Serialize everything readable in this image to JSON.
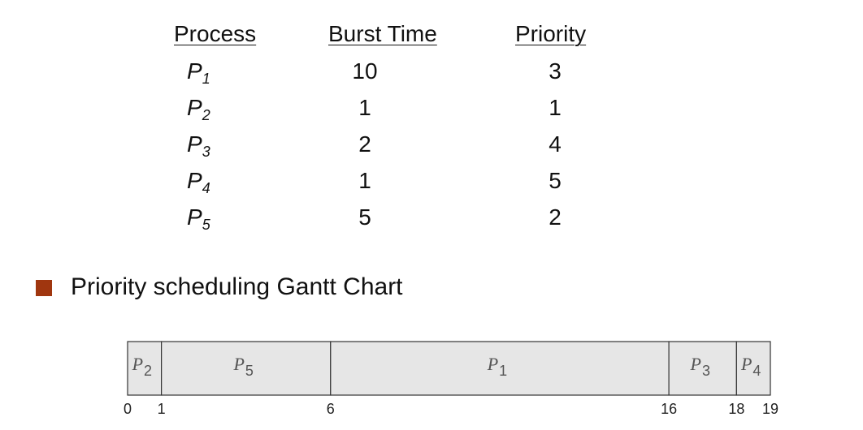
{
  "table": {
    "headers": {
      "process": "Process",
      "burst": "Burst Time",
      "priority": "Priority"
    },
    "rows": [
      {
        "name": "P",
        "sub": "1",
        "burst": "10",
        "priority": "3"
      },
      {
        "name": "P",
        "sub": "2",
        "burst": "1",
        "priority": "1"
      },
      {
        "name": "P",
        "sub": "3",
        "burst": "2",
        "priority": "4"
      },
      {
        "name": "P",
        "sub": "4",
        "burst": "1",
        "priority": "5"
      },
      {
        "name": "P",
        "sub": "5",
        "burst": "5",
        "priority": "2"
      }
    ]
  },
  "bullet": {
    "text": "Priority scheduling Gantt Chart",
    "color": "#a0360f"
  },
  "gantt": {
    "fill": "#e6e6e6",
    "segments": [
      {
        "name": "P",
        "sub": "2",
        "start": 0,
        "end": 1
      },
      {
        "name": "P",
        "sub": "5",
        "start": 1,
        "end": 6
      },
      {
        "name": "P",
        "sub": "1",
        "start": 6,
        "end": 16
      },
      {
        "name": "P",
        "sub": "3",
        "start": 16,
        "end": 18
      },
      {
        "name": "P",
        "sub": "4",
        "start": 18,
        "end": 19
      }
    ],
    "ticks": [
      "0",
      "1",
      "6",
      "16",
      "18",
      "19"
    ]
  }
}
